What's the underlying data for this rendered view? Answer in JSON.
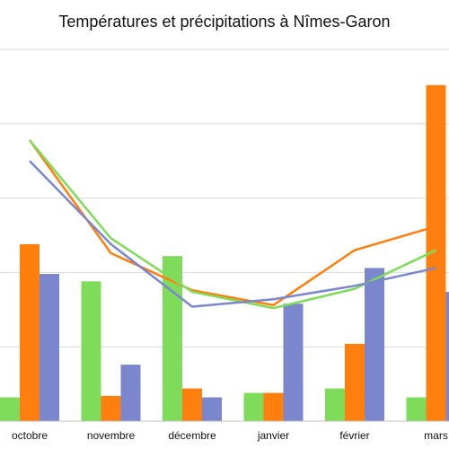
{
  "chart_data": {
    "type": "bar",
    "title": "Températures et précipitations à Nîmes-Garon",
    "xlabel": "",
    "ylabel": "",
    "categories": [
      "octobre",
      "novembre",
      "décembre",
      "janvier",
      "février",
      "mars"
    ],
    "ylim": [
      0,
      250
    ],
    "grid": true,
    "legend": "none",
    "bar_series": [
      {
        "values": [
          16,
          94,
          111,
          19,
          22,
          16
        ],
        "color": "#7fdb5a"
      },
      {
        "values": [
          119,
          17,
          22,
          19,
          52,
          226
        ],
        "color": "#ff7f0e"
      },
      {
        "values": [
          99,
          38,
          16,
          79,
          103,
          87
        ],
        "color": "#7b87cc"
      }
    ],
    "line_series": [
      {
        "values": [
          189,
          113,
          88,
          78,
          115,
          131
        ],
        "color": "#ff7f0e"
      },
      {
        "values": [
          189,
          123,
          87,
          76,
          89,
          115
        ],
        "color": "#7fdb5a"
      },
      {
        "values": [
          175,
          119,
          77,
          82,
          91,
          103
        ],
        "color": "#7b87cc"
      }
    ]
  }
}
